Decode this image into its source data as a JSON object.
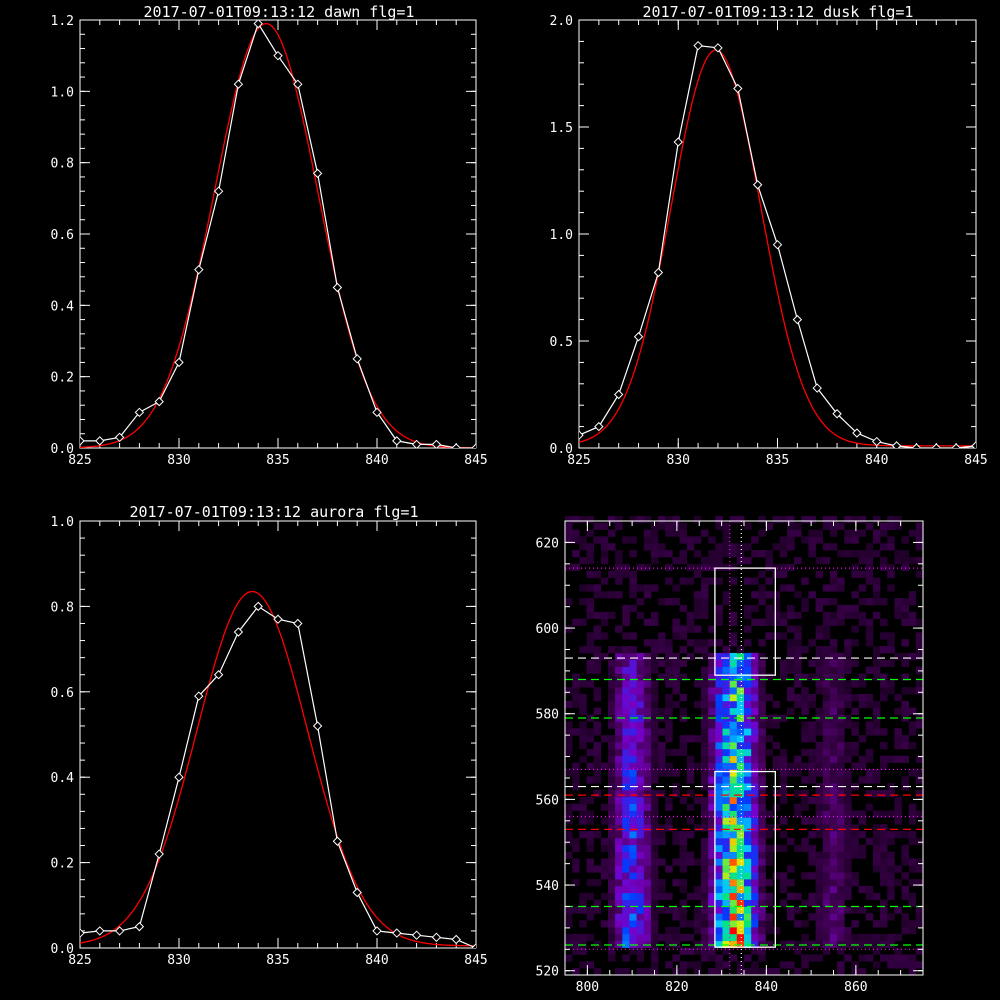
{
  "chart_data": [
    {
      "type": "line",
      "title": "2017-07-01T09:13:12 dawn flg=1",
      "xlim": [
        825,
        845
      ],
      "ylim": [
        0,
        1.2
      ],
      "xticks": [
        825,
        830,
        835,
        840,
        845
      ],
      "xtick_labels": [
        "825",
        "830",
        "835",
        "840",
        "845"
      ],
      "yticks": [
        0,
        0.2,
        0.4,
        0.6,
        0.8,
        1.0,
        1.2
      ],
      "ytick_labels": [
        "0.0",
        "0.2",
        "0.4",
        "0.6",
        "0.8",
        "1.0",
        "1.2"
      ],
      "grid": false,
      "series": [
        {
          "kind": "data",
          "color": "#ffffff",
          "marker": "diamond",
          "x": [
            825,
            826,
            827,
            828,
            829,
            830,
            831,
            832,
            833,
            834,
            835,
            836,
            837,
            838,
            839,
            840,
            841,
            842,
            843,
            844,
            845
          ],
          "y": [
            0.02,
            0.02,
            0.03,
            0.1,
            0.13,
            0.24,
            0.5,
            0.72,
            1.02,
            1.19,
            1.1,
            1.02,
            0.77,
            0.45,
            0.25,
            0.1,
            0.02,
            0.01,
            0.01,
            0.0,
            0.0
          ]
        },
        {
          "kind": "fit",
          "color": "#ff0000",
          "gaussian": {
            "amp": 1.19,
            "center": 834.4,
            "sigma": 2.6,
            "offset": 0.0
          }
        }
      ]
    },
    {
      "type": "line",
      "title": "2017-07-01T09:13:12 dusk flg=1",
      "xlim": [
        825,
        845
      ],
      "ylim": [
        0,
        2.0
      ],
      "xticks": [
        825,
        830,
        835,
        840,
        845
      ],
      "xtick_labels": [
        "825",
        "830",
        "835",
        "840",
        "845"
      ],
      "yticks": [
        0,
        0.5,
        1.0,
        1.5,
        2.0
      ],
      "ytick_labels": [
        "0.0",
        "0.5",
        "1.0",
        "1.5",
        "2.0"
      ],
      "grid": false,
      "series": [
        {
          "kind": "data",
          "color": "#ffffff",
          "marker": "diamond",
          "x": [
            825,
            826,
            827,
            828,
            829,
            830,
            831,
            832,
            833,
            834,
            835,
            836,
            837,
            838,
            839,
            840,
            841,
            842,
            843,
            844,
            845
          ],
          "y": [
            0.06,
            0.1,
            0.25,
            0.52,
            0.82,
            1.43,
            1.88,
            1.87,
            1.68,
            1.23,
            0.95,
            0.6,
            0.28,
            0.16,
            0.07,
            0.03,
            0.01,
            0.0,
            0.0,
            0.0,
            0.01
          ]
        },
        {
          "kind": "fit",
          "color": "#ff0000",
          "gaussian": {
            "amp": 1.85,
            "center": 831.9,
            "sigma": 2.25,
            "offset": 0.01
          }
        }
      ]
    },
    {
      "type": "line",
      "title": "2017-07-01T09:13:12 aurora flg=1",
      "xlim": [
        825,
        845
      ],
      "ylim": [
        0,
        1.0
      ],
      "xticks": [
        825,
        830,
        835,
        840,
        845
      ],
      "xtick_labels": [
        "825",
        "830",
        "835",
        "840",
        "845"
      ],
      "yticks": [
        0,
        0.2,
        0.4,
        0.6,
        0.8,
        1.0
      ],
      "ytick_labels": [
        "0.0",
        "0.2",
        "0.4",
        "0.6",
        "0.8",
        "1.0"
      ],
      "grid": false,
      "series": [
        {
          "kind": "data",
          "color": "#ffffff",
          "marker": "diamond",
          "x": [
            825,
            826,
            827,
            828,
            829,
            830,
            831,
            832,
            833,
            834,
            835,
            836,
            837,
            838,
            839,
            840,
            841,
            842,
            843,
            844,
            845
          ],
          "y": [
            0.035,
            0.04,
            0.04,
            0.05,
            0.22,
            0.4,
            0.59,
            0.64,
            0.74,
            0.8,
            0.77,
            0.76,
            0.52,
            0.25,
            0.13,
            0.04,
            0.035,
            0.03,
            0.025,
            0.02,
            0.0
          ]
        },
        {
          "kind": "fit",
          "color": "#ff0000",
          "gaussian": {
            "amp": 0.83,
            "center": 833.7,
            "sigma": 2.8,
            "offset": 0.005
          }
        }
      ]
    },
    {
      "type": "heatmap",
      "xlim": [
        795,
        875
      ],
      "ylim": [
        519,
        625
      ],
      "xticks": [
        800,
        820,
        840,
        860
      ],
      "xtick_labels": [
        "800",
        "820",
        "840",
        "860"
      ],
      "yticks": [
        520,
        540,
        560,
        580,
        600,
        620
      ],
      "ytick_labels": [
        "520",
        "540",
        "560",
        "580",
        "600",
        "620"
      ],
      "colormap": "rainbow",
      "bands": [
        {
          "center_x": 810,
          "half_width": 3,
          "y_range": [
            525,
            593
          ],
          "peak": 0.55
        },
        {
          "center_x": 833,
          "half_width": 3.5,
          "y_range": [
            525,
            593
          ],
          "peak": 1.0
        },
        {
          "center_x": 855,
          "half_width": 3,
          "y_range": [
            525,
            593
          ],
          "peak": 0.25
        }
      ],
      "boxes": [
        {
          "x": [
            828.5,
            842
          ],
          "y": [
            589,
            614
          ],
          "color": "#ffffff"
        },
        {
          "x": [
            828.5,
            842
          ],
          "y": [
            525.5,
            566.5
          ],
          "color": "#ffffff"
        }
      ],
      "vlines": [
        {
          "x": 831.8,
          "color": "#ff00ff",
          "style": "dotted"
        },
        {
          "x": 834.4,
          "color": "#ffffff",
          "style": "dotted"
        }
      ],
      "hlines": [
        {
          "y": 614,
          "color": "#ff00ff",
          "style": "dotted"
        },
        {
          "y": 593,
          "color": "#ffffff",
          "style": "dashed"
        },
        {
          "y": 588,
          "color": "#00ff00",
          "style": "dashed"
        },
        {
          "y": 579,
          "color": "#00ff00",
          "style": "dashed"
        },
        {
          "y": 567,
          "color": "#ff00ff",
          "style": "dotted"
        },
        {
          "y": 563,
          "color": "#ffffff",
          "style": "dashed"
        },
        {
          "y": 561,
          "color": "#ff0000",
          "style": "dashed"
        },
        {
          "y": 556,
          "color": "#ff00ff",
          "style": "dotted"
        },
        {
          "y": 553,
          "color": "#ff0000",
          "style": "dashed"
        },
        {
          "y": 535,
          "color": "#00ff00",
          "style": "dashed"
        },
        {
          "y": 526,
          "color": "#00ff00",
          "style": "dashed"
        },
        {
          "y": 525,
          "color": "#ff00ff",
          "style": "dotted"
        }
      ]
    }
  ]
}
